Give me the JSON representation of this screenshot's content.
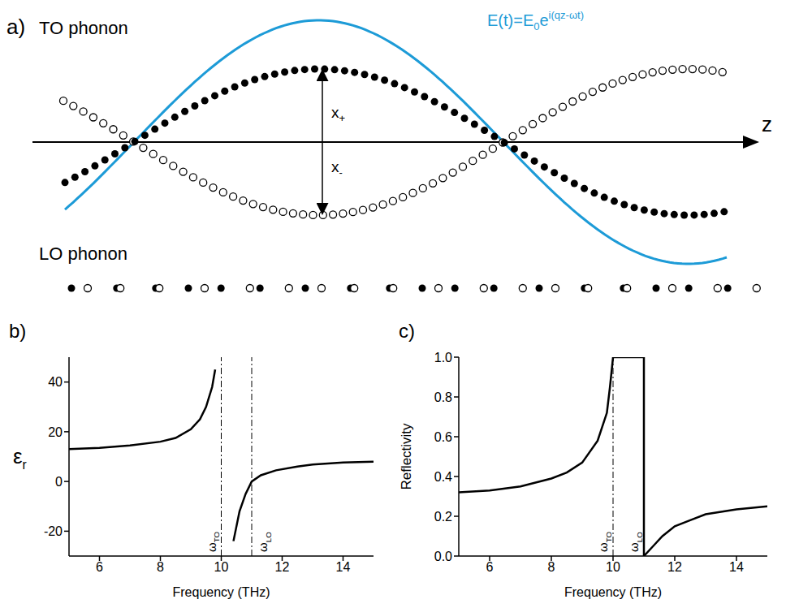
{
  "diagram": {
    "letter": "a)",
    "title_top": "TO phonon",
    "title_bottom": "LO phonon",
    "axis_label": "z",
    "field_label": {
      "base": "E(t)=E",
      "sub": "0",
      "mid": "e",
      "sup": "i(qz-ωt)"
    },
    "field_color": "#1d9bd7",
    "displacement_labels": [
      {
        "base": "x",
        "sub": "+"
      },
      {
        "base": "x",
        "sub": "-"
      }
    ]
  },
  "chart_data": [
    {
      "letter": "b)",
      "type": "line",
      "x_label": "Frequency (THz)",
      "y_label": {
        "base": "ε",
        "sub": "r"
      },
      "xlim": [
        5,
        15
      ],
      "ylim": [
        -30,
        50
      ],
      "xticks": [
        6,
        8,
        10,
        12,
        14
      ],
      "yticks": [
        -20,
        0,
        20,
        40
      ],
      "color": "#000000",
      "x": [
        5,
        6,
        7,
        8,
        8.5,
        9,
        9.3,
        9.5,
        9.7,
        9.8,
        10,
        10.4,
        10.6,
        10.8,
        11,
        11.3,
        11.8,
        12.5,
        13,
        14,
        15
      ],
      "values": [
        13,
        13.5,
        14.5,
        16,
        17.5,
        21,
        25,
        30,
        38,
        45,
        null,
        -24,
        -12,
        -5,
        0,
        2.5,
        4.5,
        6,
        6.8,
        7.6,
        8
      ],
      "reference_lines": [
        {
          "x": 10,
          "label": {
            "base": "ω",
            "sub": "TO"
          }
        },
        {
          "x": 11,
          "label": {
            "base": "ω",
            "sub": "LO"
          }
        }
      ]
    },
    {
      "letter": "c)",
      "type": "line",
      "x_label": "Frequency (THz)",
      "y_label": "Reflectivity",
      "xlim": [
        5,
        15
      ],
      "ylim": [
        0,
        1
      ],
      "xticks": [
        6,
        8,
        10,
        12,
        14
      ],
      "yticks": [
        {
          "value": 0,
          "label": "0.0"
        },
        0.2,
        0.4,
        0.6,
        0.8,
        {
          "value": 1,
          "label": "1.0"
        }
      ],
      "color": "#000000",
      "x": [
        5,
        6,
        7,
        8,
        8.5,
        9,
        9.5,
        9.8,
        9.9,
        10,
        11,
        11,
        11.3,
        11.6,
        12,
        12.5,
        13,
        14,
        15
      ],
      "values": [
        0.32,
        0.33,
        0.35,
        0.39,
        0.42,
        0.47,
        0.58,
        0.72,
        0.85,
        1,
        1,
        0,
        0.05,
        0.1,
        0.15,
        0.18,
        0.21,
        0.235,
        0.25
      ],
      "reference_lines": [
        {
          "x": 10,
          "label": {
            "base": "ω",
            "sub": "TO"
          }
        },
        {
          "x": 11,
          "label": {
            "base": "ω",
            "sub": "LO"
          }
        }
      ]
    }
  ]
}
